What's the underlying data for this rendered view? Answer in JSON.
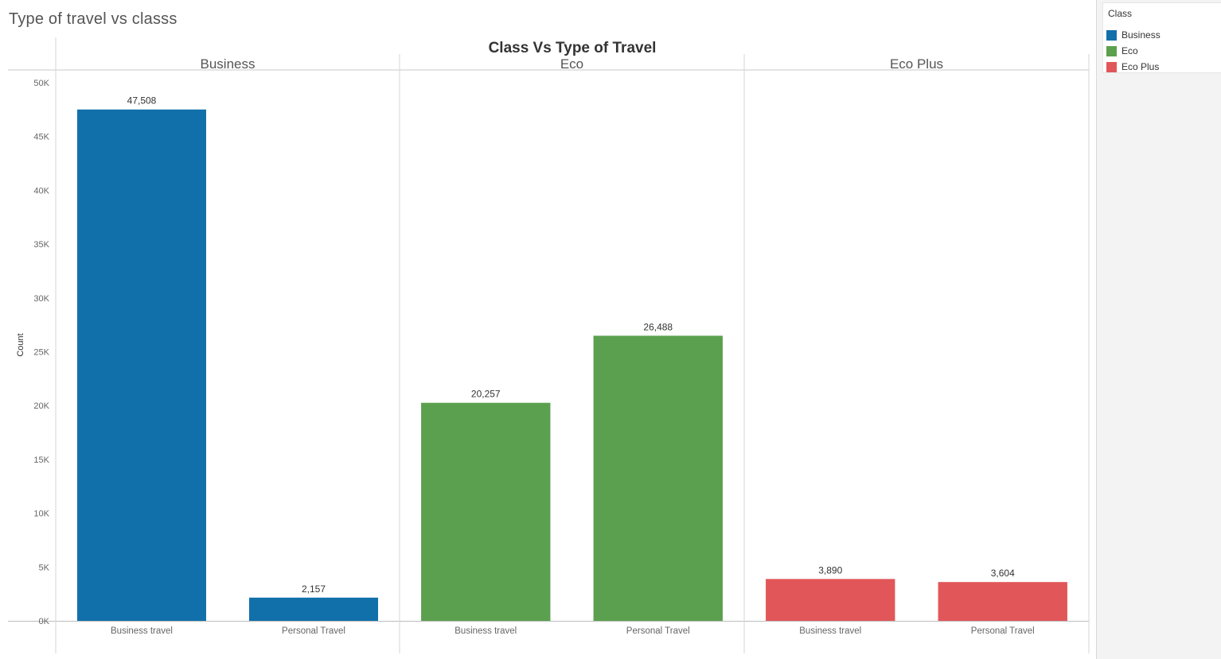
{
  "sheet": {
    "title": "Type of travel vs classs"
  },
  "legend": {
    "title": "Class",
    "items": [
      {
        "label": "Business",
        "color": "#1170aa"
      },
      {
        "label": "Eco",
        "color": "#5ba04e"
      },
      {
        "label": "Eco Plus",
        "color": "#e15759"
      }
    ]
  },
  "chart_data": {
    "type": "bar",
    "title": "Class Vs Type of Travel",
    "ylabel": "Count",
    "xlabel": "",
    "ylim": [
      0,
      50000
    ],
    "y_ticks": [
      0,
      5000,
      10000,
      15000,
      20000,
      25000,
      30000,
      35000,
      40000,
      45000,
      50000
    ],
    "y_tick_labels": [
      "0K",
      "5K",
      "10K",
      "15K",
      "20K",
      "25K",
      "30K",
      "35K",
      "40K",
      "45K",
      "50K"
    ],
    "grid": false,
    "legend_position": "right",
    "panels": [
      {
        "name": "Business",
        "color": "#1170aa",
        "categories": [
          "Business travel",
          "Personal Travel"
        ],
        "values": [
          47508,
          2157
        ],
        "labels": [
          "47,508",
          "2,157"
        ]
      },
      {
        "name": "Eco",
        "color": "#5ba04e",
        "categories": [
          "Business travel",
          "Personal Travel"
        ],
        "values": [
          20257,
          26488
        ],
        "labels": [
          "20,257",
          "26,488"
        ]
      },
      {
        "name": "Eco Plus",
        "color": "#e15759",
        "categories": [
          "Business travel",
          "Personal Travel"
        ],
        "values": [
          3890,
          3604
        ],
        "labels": [
          "3,890",
          "3,604"
        ]
      }
    ]
  }
}
